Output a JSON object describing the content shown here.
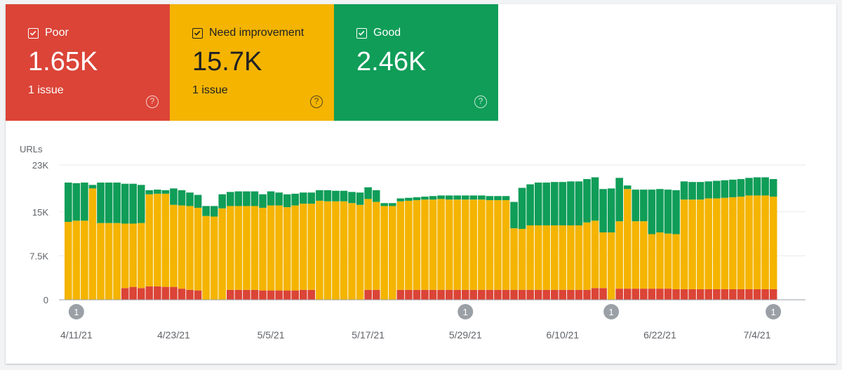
{
  "tiles": [
    {
      "label": "Poor",
      "value": "1.65K",
      "sub": "1 issue",
      "help": "?",
      "color": "#db4437"
    },
    {
      "label": "Need improvement",
      "value": "15.7K",
      "sub": "1 issue",
      "help": "?",
      "color": "#f4b400"
    },
    {
      "label": "Good",
      "value": "2.46K",
      "sub": "",
      "help": "?",
      "color": "#0f9d58"
    }
  ],
  "chart_data": {
    "type": "bar",
    "stacked": true,
    "ylabel": "URLs",
    "ylim": [
      0,
      23000
    ],
    "yticks": [
      0,
      7500,
      15000,
      23000
    ],
    "ytick_labels": [
      "0",
      "7.5K",
      "15K",
      "23K"
    ],
    "xtick_labels": [
      {
        "label": "4/11/21",
        "index": 1
      },
      {
        "label": "4/23/21",
        "index": 13
      },
      {
        "label": "5/5/21",
        "index": 25
      },
      {
        "label": "5/17/21",
        "index": 37
      },
      {
        "label": "5/29/21",
        "index": 49
      },
      {
        "label": "6/10/21",
        "index": 61
      },
      {
        "label": "6/22/21",
        "index": 73
      },
      {
        "label": "7/4/21",
        "index": 85
      }
    ],
    "annotations": [
      {
        "index": 1,
        "text": "1"
      },
      {
        "index": 49,
        "text": "1"
      },
      {
        "index": 67,
        "text": "1"
      },
      {
        "index": 87,
        "text": "1"
      }
    ],
    "series": [
      {
        "name": "Poor",
        "color": "#db4437",
        "values": [
          0,
          0,
          0,
          0,
          0,
          0,
          0,
          2000,
          2200,
          2000,
          2300,
          2300,
          2200,
          2200,
          1900,
          1700,
          1600,
          0,
          0,
          0,
          1700,
          1700,
          1700,
          1700,
          1600,
          1600,
          1600,
          1600,
          1600,
          1700,
          1700,
          0,
          0,
          0,
          0,
          0,
          0,
          1700,
          1700,
          0,
          0,
          1700,
          1700,
          1700,
          1700,
          1700,
          1700,
          1700,
          1700,
          1700,
          1700,
          1700,
          1700,
          1700,
          1700,
          1700,
          1700,
          1700,
          1700,
          1700,
          1700,
          1700,
          1700,
          1700,
          1700,
          2000,
          2000,
          0,
          1900,
          1900,
          1900,
          1900,
          1900,
          1900,
          1900,
          1800,
          1800,
          1800,
          1800,
          1800,
          1800,
          1800,
          1800,
          1800,
          1800,
          1800,
          1800,
          1800
        ]
      },
      {
        "name": "Need improvement",
        "values": [
          13300,
          13500,
          13500,
          19000,
          13100,
          13100,
          13100,
          11000,
          10800,
          11100,
          15700,
          15800,
          15900,
          14000,
          14200,
          14300,
          14100,
          14300,
          14200,
          15600,
          14300,
          14300,
          14300,
          14300,
          14100,
          14500,
          14500,
          14200,
          14500,
          14700,
          14700,
          16900,
          16800,
          16800,
          16800,
          16500,
          16200,
          15500,
          15000,
          16000,
          16000,
          15100,
          15200,
          15300,
          15400,
          15400,
          15500,
          15400,
          15400,
          15400,
          15400,
          15400,
          15300,
          15300,
          15300,
          10500,
          10400,
          11000,
          11000,
          11000,
          11000,
          11000,
          11000,
          11000,
          11500,
          11500,
          9500,
          11500,
          11500,
          17000,
          11500,
          11500,
          9300,
          9600,
          9400,
          9400,
          15300,
          15300,
          15300,
          15500,
          15500,
          15600,
          15700,
          15800,
          16000,
          16000,
          16000,
          15800
        ]
      },
      {
        "name": "Good",
        "values": [
          6700,
          6400,
          6500,
          600,
          6900,
          6900,
          6900,
          6800,
          6800,
          6500,
          700,
          700,
          600,
          2800,
          2600,
          2300,
          2200,
          1700,
          1800,
          2400,
          2400,
          2500,
          2500,
          2500,
          2300,
          2400,
          2200,
          2200,
          2000,
          1900,
          1900,
          1800,
          1900,
          1800,
          1800,
          1900,
          2100,
          2000,
          2000,
          500,
          500,
          500,
          500,
          500,
          500,
          600,
          600,
          700,
          700,
          700,
          700,
          700,
          700,
          700,
          700,
          4500,
          7000,
          7000,
          7300,
          7300,
          7400,
          7400,
          7500,
          7500,
          7400,
          7400,
          7400,
          7500,
          7400,
          600,
          5400,
          5400,
          7600,
          7400,
          7500,
          7500,
          3100,
          3000,
          3000,
          2900,
          3000,
          3000,
          3000,
          3000,
          3000,
          3100,
          3100,
          3000
        ]
      }
    ]
  }
}
